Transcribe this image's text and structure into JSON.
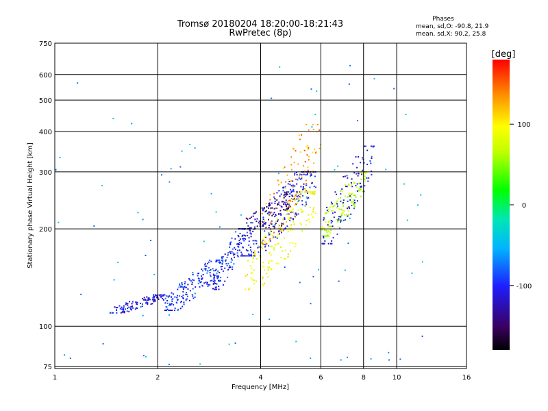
{
  "chart_data": {
    "type": "scatter",
    "title": "Tromsø 20180204 18:20:00-18:21:43",
    "subtitle": "RwPretec (8p)",
    "stats": {
      "heading": "Phases",
      "line_o": "mean, sd,O: -90.8, 21.9",
      "line_x": "mean, sd,X:  90.2, 25.8"
    },
    "xlabel": "Frequency [MHz]",
    "ylabel": "Stationary phase Virtual Height [km]",
    "x_scale": "log",
    "y_scale": "log",
    "xlim": [
      1,
      16
    ],
    "ylim": [
      74,
      750
    ],
    "x_ticks": [
      1,
      2,
      4,
      6,
      8,
      10,
      16
    ],
    "x_tick_labels": [
      "1",
      "2",
      "4",
      "6",
      "8",
      "10",
      "16"
    ],
    "y_ticks": [
      75,
      100,
      200,
      300,
      400,
      500,
      600,
      750
    ],
    "y_tick_labels": [
      "75",
      "100",
      "200",
      "300",
      "400",
      "500",
      "600",
      "750"
    ],
    "grid": true,
    "colorbar": {
      "label": "[deg]",
      "range": [
        -180,
        180
      ],
      "ticks": [
        100,
        0,
        -100
      ],
      "tick_labels": [
        "100",
        "0",
        "-100"
      ]
    },
    "colors": {
      "o_mode": "#1e3cff",
      "x_mode": "#ffd000",
      "grid": "#000000"
    },
    "clusters": [
      {
        "name": "o-lower-blue",
        "phase": -110,
        "f_range": [
          1.45,
          2.1
        ],
        "h_range": [
          110,
          125
        ],
        "count": 120
      },
      {
        "name": "o-lower-blue-2",
        "phase": -95,
        "f_range": [
          2.1,
          3.1
        ],
        "h_range": [
          112,
          160
        ],
        "count": 180
      },
      {
        "name": "o-mid-blue",
        "phase": -100,
        "f_range": [
          2.9,
          3.6
        ],
        "h_range": [
          130,
          200
        ],
        "count": 120
      },
      {
        "name": "o-f-blue",
        "phase": -105,
        "f_range": [
          3.5,
          5.8
        ],
        "h_range": [
          165,
          300
        ],
        "count": 260
      },
      {
        "name": "o-f-navy",
        "phase": -140,
        "f_range": [
          3.6,
          5.2
        ],
        "h_range": [
          200,
          260
        ],
        "count": 90
      },
      {
        "name": "x-f-yellow",
        "phase": 90,
        "f_range": [
          3.6,
          5.8
        ],
        "h_range": [
          130,
          260
        ],
        "count": 170
      },
      {
        "name": "x-f-orange",
        "phase": 130,
        "f_range": [
          4.0,
          6.0
        ],
        "h_range": [
          180,
          420
        ],
        "count": 110
      },
      {
        "name": "x-upper-green",
        "phase": 60,
        "f_range": [
          6.0,
          8.2
        ],
        "h_range": [
          190,
          300
        ],
        "count": 130
      },
      {
        "name": "o-upper-blue",
        "phase": -110,
        "f_range": [
          6.0,
          8.6
        ],
        "h_range": [
          180,
          360
        ],
        "count": 110
      },
      {
        "name": "scatter-noise",
        "phase": -60,
        "f_range": [
          1.0,
          12.0
        ],
        "h_range": [
          75,
          650
        ],
        "count": 90
      }
    ]
  }
}
